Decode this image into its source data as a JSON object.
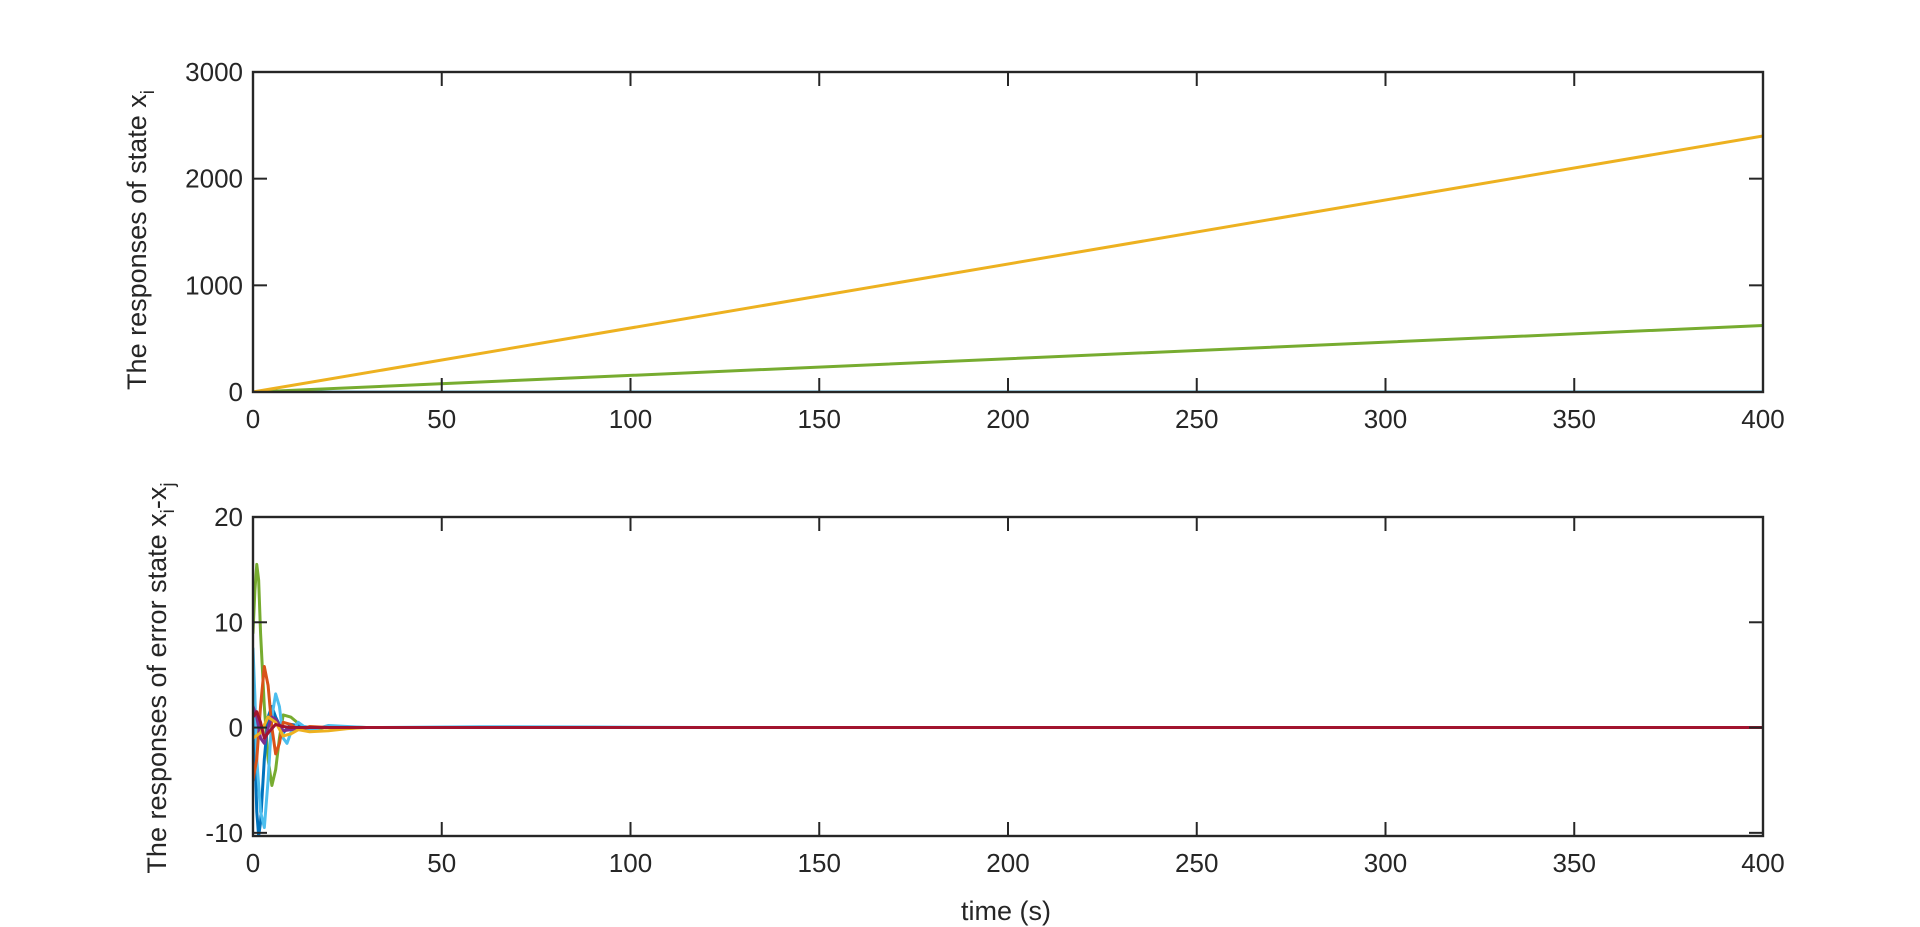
{
  "chart_data": [
    {
      "type": "line",
      "title": "",
      "ylabel_main": "The responses of state x",
      "ylabel_sub": "i",
      "xlabel": "",
      "xlim": [
        0,
        400
      ],
      "ylim": [
        0,
        3000
      ],
      "xticks": [
        0,
        50,
        100,
        150,
        200,
        250,
        300,
        350,
        400
      ],
      "yticks": [
        0,
        1000,
        2000,
        3000
      ],
      "xtick_labels": [
        "0",
        "50",
        "100",
        "150",
        "200",
        "250",
        "300",
        "350",
        "400"
      ],
      "ytick_labels": [
        "0",
        "1000",
        "2000",
        "3000"
      ],
      "grid": false,
      "series": [
        {
          "color": "#4DBEEE",
          "x": [
            0,
            400
          ],
          "y": [
            0,
            0
          ]
        },
        {
          "color": "#77AC30",
          "x": [
            0,
            400
          ],
          "y": [
            0,
            623
          ]
        },
        {
          "color": "#EDB120",
          "x": [
            0,
            400
          ],
          "y": [
            0,
            2400
          ]
        }
      ]
    },
    {
      "type": "line",
      "title": "",
      "ylabel_main": "The responses of error state x",
      "ylabel_sub1": "i",
      "ylabel_mid": "-x",
      "ylabel_sub2": "j",
      "xlabel": "time (s)",
      "xlim": [
        0,
        400
      ],
      "ylim": [
        -10.3,
        20
      ],
      "xticks": [
        0,
        50,
        100,
        150,
        200,
        250,
        300,
        350,
        400
      ],
      "yticks": [
        -10,
        0,
        10,
        20
      ],
      "xtick_labels": [
        "0",
        "50",
        "100",
        "150",
        "200",
        "250",
        "300",
        "350",
        "400"
      ],
      "ytick_labels": [
        "-10",
        "0",
        "10",
        "20"
      ],
      "grid": false,
      "series": [
        {
          "color": "#77AC30",
          "x": [
            0,
            0.5,
            1,
            1.5,
            2,
            3,
            4,
            5,
            6,
            7,
            8,
            10,
            12,
            15,
            20,
            30,
            40,
            400
          ],
          "y": [
            9,
            13,
            15.5,
            14,
            9,
            2,
            -3,
            -5.5,
            -4,
            -1,
            1.2,
            1,
            0.4,
            -0.3,
            0.1,
            0,
            0,
            0
          ]
        },
        {
          "color": "#0072BD",
          "x": [
            0,
            0.5,
            1,
            1.5,
            2,
            3,
            4,
            5,
            6,
            8,
            10,
            15,
            25,
            400
          ],
          "y": [
            4,
            -2,
            -8,
            -10.3,
            -9,
            -3,
            1,
            2,
            1,
            -0.5,
            0.3,
            0,
            0,
            0
          ]
        },
        {
          "color": "#4DBEEE",
          "x": [
            0,
            0.5,
            1,
            2,
            3,
            4,
            5,
            6,
            7,
            8,
            9,
            10,
            12,
            15,
            20,
            30,
            60,
            90,
            120,
            400
          ],
          "y": [
            7.5,
            3,
            -3,
            -8,
            -9.5,
            -5,
            1,
            3.2,
            2,
            -1,
            -1.5,
            -0.5,
            0.5,
            -0.3,
            0.2,
            0,
            0.08,
            0.05,
            0,
            0
          ]
        },
        {
          "color": "#D95319",
          "x": [
            0,
            1,
            2,
            3,
            4,
            5,
            6,
            7,
            8,
            10,
            12,
            15,
            20,
            400
          ],
          "y": [
            -5,
            -3,
            2,
            5.8,
            4,
            0,
            -2.5,
            -1.5,
            0.5,
            0.3,
            -0.2,
            0.1,
            0,
            0
          ]
        },
        {
          "color": "#7E2F8E",
          "x": [
            0,
            1,
            2,
            3,
            4,
            5,
            6,
            8,
            10,
            15,
            20,
            400
          ],
          "y": [
            2,
            1,
            -1,
            -1.5,
            0,
            1,
            0.8,
            -0.3,
            -0.2,
            0,
            0,
            0
          ]
        },
        {
          "color": "#EDB120",
          "x": [
            0,
            2,
            4,
            6,
            8,
            10,
            12,
            15,
            20,
            25,
            30,
            40,
            400
          ],
          "y": [
            -1,
            -0.5,
            1,
            0.5,
            -0.8,
            -0.6,
            -0.2,
            -0.4,
            -0.3,
            -0.1,
            0,
            0,
            0
          ]
        },
        {
          "color": "#A2142F",
          "x": [
            0,
            1,
            2,
            3,
            4,
            6,
            8,
            10,
            15,
            400
          ],
          "y": [
            1,
            1.5,
            0.5,
            -1,
            -0.5,
            0.3,
            0.1,
            0,
            0,
            0
          ]
        }
      ]
    }
  ]
}
